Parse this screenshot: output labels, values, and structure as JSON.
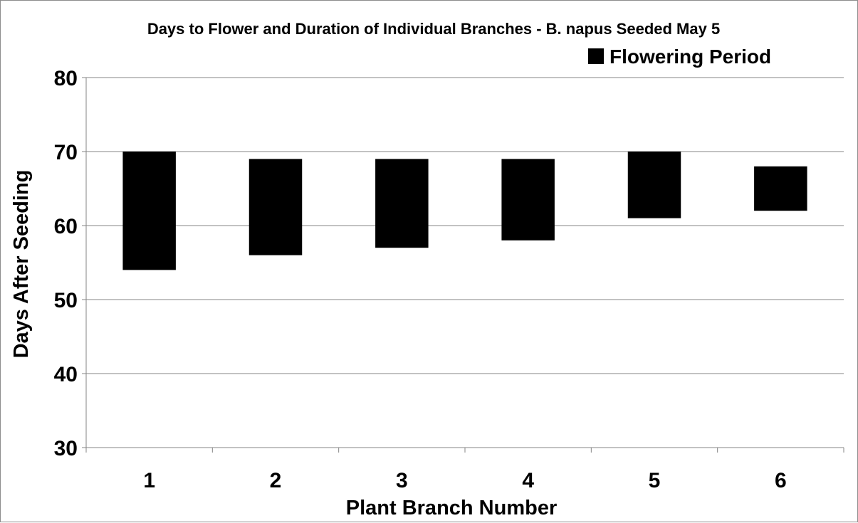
{
  "chart_data": {
    "type": "bar",
    "subtype": "floating-range",
    "title": "Days to Flower and Duration of Individual Branches - B. napus Seeded May 5",
    "xlabel": "Plant Branch Number",
    "ylabel": "Days After Seeding",
    "categories": [
      "1",
      "2",
      "3",
      "4",
      "5",
      "6"
    ],
    "series": [
      {
        "name": "Flowering Period",
        "color": "#000000",
        "ranges": [
          [
            54,
            70
          ],
          [
            56,
            69
          ],
          [
            57,
            69
          ],
          [
            58,
            69
          ],
          [
            61,
            70
          ],
          [
            62,
            68
          ]
        ]
      }
    ],
    "ylim": [
      30,
      80
    ],
    "yticks": [
      "30",
      "40",
      "50",
      "60",
      "70",
      "80"
    ],
    "grid": true,
    "gridline_color": "#868686",
    "legend": {
      "position": "top-right",
      "entries": [
        "Flowering Period"
      ]
    }
  }
}
